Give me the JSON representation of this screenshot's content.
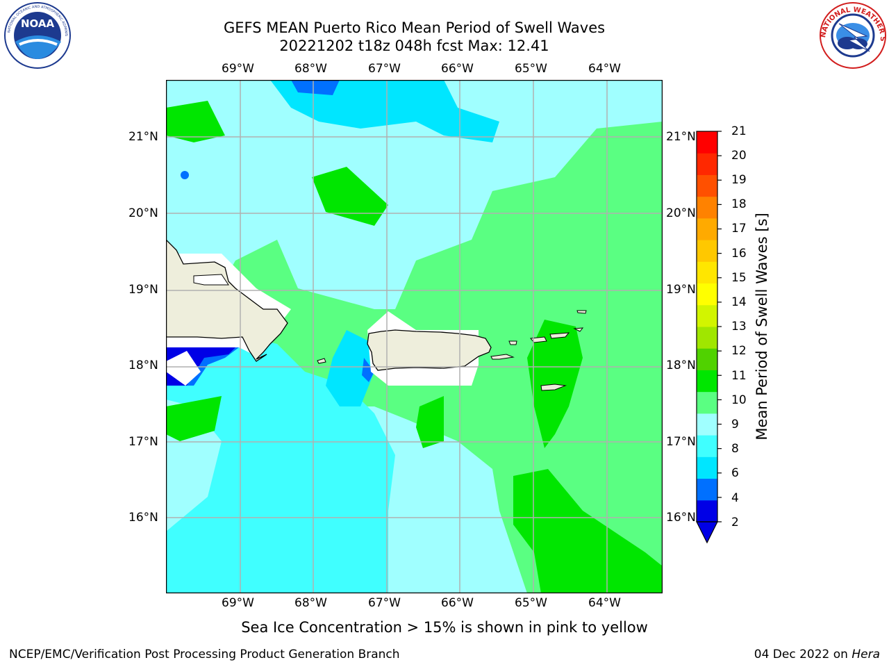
{
  "header": {
    "title_line1": "GEFS MEAN Puerto Rico Mean Period of Swell Waves",
    "title_line2": "20221202 t18z 048h fcst   Max: 12.41"
  },
  "logos": {
    "noaa_text": "NOAA",
    "noaa_ring_text": "NATIONAL OCEANIC AND ATMOSPHERIC ADMINISTRATION · U.S. DEPARTMENT OF COMMERCE",
    "nws_ring_text": "NATIONAL WEATHER SERVICE"
  },
  "map": {
    "lon_labels": [
      "69°W",
      "68°W",
      "67°W",
      "66°W",
      "65°W",
      "64°W"
    ],
    "lat_labels": [
      "21°N",
      "20°N",
      "19°N",
      "18°N",
      "17°N",
      "16°N"
    ]
  },
  "colorbar": {
    "label": "Mean Period of Swell Waves [s]",
    "ticks": [
      "21",
      "20",
      "19",
      "18",
      "17",
      "16",
      "15",
      "14",
      "13",
      "12",
      "11",
      "10",
      "9",
      "8",
      "6",
      "4",
      "2"
    ],
    "bins_bottom_to_top": [
      "#0000e6",
      "#0070ff",
      "#00e6ff",
      "#40ffff",
      "#a0ffff",
      "#5aff82",
      "#00e600",
      "#50d200",
      "#a0e600",
      "#d2f500",
      "#ffff00",
      "#ffe600",
      "#ffc800",
      "#ffaa00",
      "#ff8200",
      "#ff5000",
      "#ff2800",
      "#ff0000"
    ],
    "colors": {
      "deep_blue": "#0000e6",
      "blue": "#0070ff",
      "cyan": "#00e6ff",
      "aqua": "#40ffff",
      "light_aqua": "#a0ffff",
      "light_green": "#5aff82",
      "green": "#00e600",
      "land": "#eeeedc"
    }
  },
  "caption": "Sea Ice Concentration > 15% is shown in pink to yellow",
  "footer": {
    "left": "NCEP/EMC/Verification Post Processing Product Generation Branch",
    "right_prefix": "04 Dec 2022 on ",
    "right_machine": "Hera"
  }
}
